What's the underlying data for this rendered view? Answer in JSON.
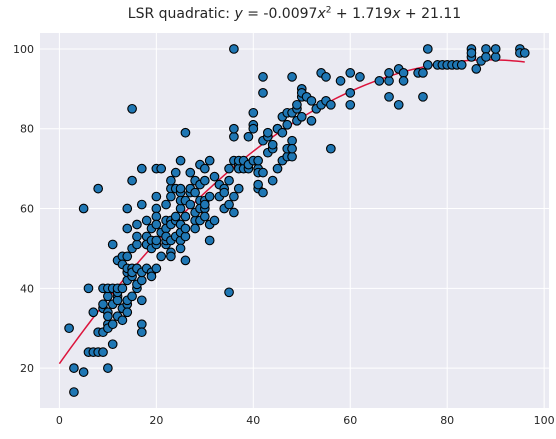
{
  "chart_data": {
    "type": "scatter",
    "title": {
      "prefix": "LSR quadratic: ",
      "y_var": "y",
      "eq": " =  -0.0097",
      "x_var1": "x",
      "exp": "2",
      "plus1": " + 1.719",
      "x_var2": "x",
      "plus2": " + 21.11"
    },
    "xlabel": "",
    "ylabel": "",
    "xlim": [
      -4,
      101
    ],
    "ylim": [
      10,
      104
    ],
    "xticks": [
      0,
      20,
      40,
      60,
      80,
      100
    ],
    "yticks": [
      20,
      40,
      60,
      80,
      100
    ],
    "grid": true,
    "background": "#eaeaf2",
    "point_color": "#1f77b4",
    "point_edge": "#000000",
    "line_color": "#dc143c",
    "fit": {
      "a": -0.0097,
      "b": 1.719,
      "c": 21.11,
      "x_range": [
        0,
        96
      ]
    },
    "points": [
      [
        2,
        30
      ],
      [
        3,
        20
      ],
      [
        3,
        14
      ],
      [
        5,
        19
      ],
      [
        5,
        60
      ],
      [
        6,
        40
      ],
      [
        6,
        24
      ],
      [
        7,
        34
      ],
      [
        7,
        24
      ],
      [
        8,
        24
      ],
      [
        8,
        65
      ],
      [
        8,
        29
      ],
      [
        9,
        40
      ],
      [
        9,
        35
      ],
      [
        9,
        29
      ],
      [
        9,
        24
      ],
      [
        9,
        36
      ],
      [
        10,
        31
      ],
      [
        10,
        30
      ],
      [
        10,
        38
      ],
      [
        10,
        20
      ],
      [
        10,
        34
      ],
      [
        10,
        40
      ],
      [
        10,
        33
      ],
      [
        11,
        26
      ],
      [
        11,
        51
      ],
      [
        11,
        36
      ],
      [
        11,
        31
      ],
      [
        11,
        40
      ],
      [
        12,
        38
      ],
      [
        12,
        37
      ],
      [
        12,
        47
      ],
      [
        12,
        33
      ],
      [
        12,
        39
      ],
      [
        12,
        40
      ],
      [
        13,
        35
      ],
      [
        13,
        32
      ],
      [
        13,
        48
      ],
      [
        13,
        40
      ],
      [
        13,
        46
      ],
      [
        14,
        42
      ],
      [
        14,
        36
      ],
      [
        14,
        44
      ],
      [
        14,
        45
      ],
      [
        14,
        55
      ],
      [
        14,
        60
      ],
      [
        14,
        37
      ],
      [
        14,
        48
      ],
      [
        14,
        34
      ],
      [
        15,
        43
      ],
      [
        15,
        50
      ],
      [
        15,
        45
      ],
      [
        15,
        67
      ],
      [
        15,
        85
      ],
      [
        15,
        38
      ],
      [
        15,
        44
      ],
      [
        16,
        40
      ],
      [
        16,
        51
      ],
      [
        16,
        45
      ],
      [
        16,
        53
      ],
      [
        16,
        41
      ],
      [
        16,
        56
      ],
      [
        16,
        45
      ],
      [
        17,
        31
      ],
      [
        17,
        37
      ],
      [
        17,
        29
      ],
      [
        17,
        42
      ],
      [
        17,
        70
      ],
      [
        17,
        61
      ],
      [
        17,
        44
      ],
      [
        18,
        45
      ],
      [
        18,
        57
      ],
      [
        18,
        51
      ],
      [
        18,
        53
      ],
      [
        18,
        51
      ],
      [
        19,
        52
      ],
      [
        19,
        50
      ],
      [
        19,
        44
      ],
      [
        19,
        55
      ],
      [
        19,
        43
      ],
      [
        20,
        70
      ],
      [
        20,
        45
      ],
      [
        20,
        60
      ],
      [
        20,
        63
      ],
      [
        20,
        58
      ],
      [
        20,
        51
      ],
      [
        20,
        56
      ],
      [
        20,
        52
      ],
      [
        21,
        54
      ],
      [
        21,
        70
      ],
      [
        21,
        48
      ],
      [
        22,
        57
      ],
      [
        22,
        51
      ],
      [
        22,
        55
      ],
      [
        22,
        61
      ],
      [
        22,
        52
      ],
      [
        22,
        53
      ],
      [
        23,
        49
      ],
      [
        23,
        65
      ],
      [
        23,
        48
      ],
      [
        23,
        57
      ],
      [
        23,
        52
      ],
      [
        23,
        56
      ],
      [
        23,
        63
      ],
      [
        23,
        67
      ],
      [
        24,
        69
      ],
      [
        24,
        57
      ],
      [
        24,
        65
      ],
      [
        24,
        53
      ],
      [
        24,
        58
      ],
      [
        25,
        64
      ],
      [
        25,
        72
      ],
      [
        25,
        52
      ],
      [
        25,
        50
      ],
      [
        25,
        65
      ],
      [
        25,
        54
      ],
      [
        25,
        60
      ],
      [
        25,
        56
      ],
      [
        25,
        62
      ],
      [
        26,
        47
      ],
      [
        26,
        53
      ],
      [
        26,
        58
      ],
      [
        26,
        62
      ],
      [
        26,
        79
      ],
      [
        26,
        55
      ],
      [
        27,
        61
      ],
      [
        27,
        64
      ],
      [
        27,
        65
      ],
      [
        27,
        69
      ],
      [
        28,
        57
      ],
      [
        28,
        64
      ],
      [
        28,
        59
      ],
      [
        28,
        55
      ],
      [
        28,
        67
      ],
      [
        29,
        62
      ],
      [
        29,
        71
      ],
      [
        29,
        57
      ],
      [
        29,
        60
      ],
      [
        29,
        66
      ],
      [
        30,
        60
      ],
      [
        30,
        62
      ],
      [
        30,
        67
      ],
      [
        30,
        70
      ],
      [
        30,
        61
      ],
      [
        30,
        58
      ],
      [
        31,
        52
      ],
      [
        31,
        63
      ],
      [
        31,
        72
      ],
      [
        31,
        56
      ],
      [
        32,
        68
      ],
      [
        32,
        57
      ],
      [
        33,
        63
      ],
      [
        33,
        66
      ],
      [
        34,
        65
      ],
      [
        34,
        60
      ],
      [
        34,
        64
      ],
      [
        35,
        39
      ],
      [
        35,
        61
      ],
      [
        35,
        67
      ],
      [
        35,
        70
      ],
      [
        36,
        59
      ],
      [
        36,
        72
      ],
      [
        36,
        78
      ],
      [
        36,
        80
      ],
      [
        36,
        100
      ],
      [
        36,
        63
      ],
      [
        37,
        71
      ],
      [
        37,
        70
      ],
      [
        37,
        65
      ],
      [
        37,
        72
      ],
      [
        38,
        70
      ],
      [
        38,
        72
      ],
      [
        39,
        70
      ],
      [
        39,
        78
      ],
      [
        39,
        71
      ],
      [
        40,
        72
      ],
      [
        40,
        81
      ],
      [
        40,
        84
      ],
      [
        40,
        80
      ],
      [
        41,
        65
      ],
      [
        41,
        70
      ],
      [
        41,
        69
      ],
      [
        41,
        72
      ],
      [
        41,
        66
      ],
      [
        42,
        64
      ],
      [
        42,
        69
      ],
      [
        42,
        77
      ],
      [
        42,
        89
      ],
      [
        42,
        93
      ],
      [
        43,
        78
      ],
      [
        43,
        74
      ],
      [
        43,
        79
      ],
      [
        44,
        75
      ],
      [
        44,
        67
      ],
      [
        44,
        76
      ],
      [
        45,
        70
      ],
      [
        45,
        80
      ],
      [
        45,
        80
      ],
      [
        46,
        72
      ],
      [
        46,
        79
      ],
      [
        46,
        83
      ],
      [
        47,
        73
      ],
      [
        47,
        75
      ],
      [
        47,
        84
      ],
      [
        47,
        81
      ],
      [
        48,
        73
      ],
      [
        48,
        84
      ],
      [
        48,
        77
      ],
      [
        48,
        75
      ],
      [
        48,
        93
      ],
      [
        49,
        82
      ],
      [
        49,
        85
      ],
      [
        49,
        86
      ],
      [
        50,
        88
      ],
      [
        50,
        83
      ],
      [
        50,
        90
      ],
      [
        50,
        89
      ],
      [
        51,
        88
      ],
      [
        52,
        87
      ],
      [
        52,
        82
      ],
      [
        53,
        85
      ],
      [
        54,
        86
      ],
      [
        54,
        94
      ],
      [
        55,
        87
      ],
      [
        55,
        93
      ],
      [
        56,
        75
      ],
      [
        56,
        86
      ],
      [
        58,
        92
      ],
      [
        60,
        86
      ],
      [
        60,
        94
      ],
      [
        60,
        89
      ],
      [
        62,
        93
      ],
      [
        66,
        92
      ],
      [
        68,
        88
      ],
      [
        68,
        92
      ],
      [
        68,
        94
      ],
      [
        70,
        95
      ],
      [
        70,
        86
      ],
      [
        71,
        94
      ],
      [
        71,
        92
      ],
      [
        74,
        94
      ],
      [
        75,
        88
      ],
      [
        75,
        94
      ],
      [
        76,
        96
      ],
      [
        76,
        100
      ],
      [
        78,
        96
      ],
      [
        79,
        96
      ],
      [
        80,
        96
      ],
      [
        81,
        96
      ],
      [
        82,
        96
      ],
      [
        83,
        96
      ],
      [
        85,
        100
      ],
      [
        85,
        98
      ],
      [
        85,
        99
      ],
      [
        86,
        95
      ],
      [
        87,
        97
      ],
      [
        88,
        100
      ],
      [
        88,
        98
      ],
      [
        90,
        98
      ],
      [
        90,
        100
      ],
      [
        95,
        100
      ],
      [
        95,
        99
      ],
      [
        96,
        99
      ]
    ]
  }
}
